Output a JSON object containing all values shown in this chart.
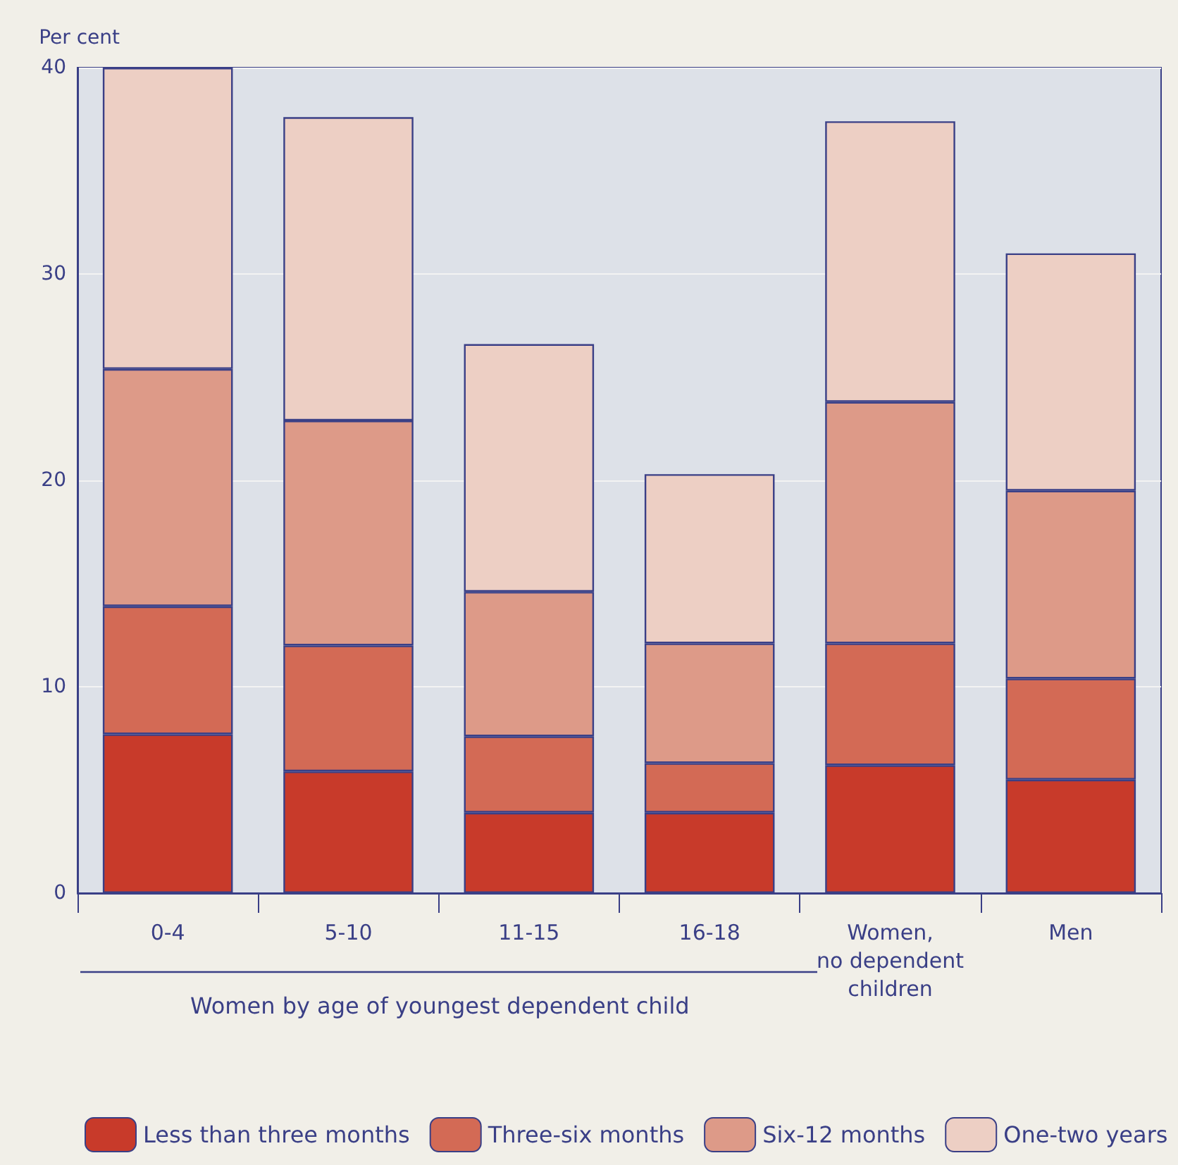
{
  "chart_data": {
    "type": "bar",
    "stacked": true,
    "ylabel": "Per cent",
    "categories": [
      "0-4",
      "5-10",
      "11-15",
      "16-18",
      "Women,\nno dependent\nchildren",
      "Men"
    ],
    "series": [
      {
        "name": "Less than three months",
        "color": "#c83a2a",
        "values": [
          7.7,
          5.9,
          3.9,
          3.9,
          6.2,
          5.5
        ]
      },
      {
        "name": "Three-six months",
        "color": "#d36a55",
        "values": [
          6.2,
          6.1,
          3.7,
          2.4,
          5.9,
          4.9
        ]
      },
      {
        "name": "Six-12 months",
        "color": "#dd9a88",
        "values": [
          11.5,
          10.9,
          7.0,
          5.8,
          11.7,
          9.1
        ]
      },
      {
        "name": "One-two years",
        "color": "#edcfc4",
        "values": [
          14.6,
          14.7,
          12.0,
          8.2,
          13.6,
          11.5
        ]
      }
    ],
    "ylim": [
      0,
      40
    ],
    "yticks": [
      0,
      10,
      20,
      30,
      40
    ],
    "grid": "y",
    "legend": "bottom left",
    "annotations": [
      "Women by age of youngest dependent child"
    ]
  }
}
